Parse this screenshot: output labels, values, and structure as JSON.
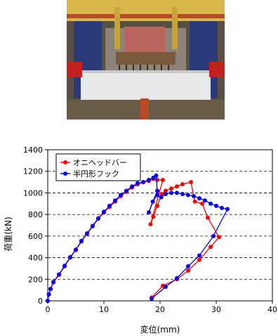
{
  "photo": {
    "icon": "loading-frame-test-photo"
  },
  "chart_data": {
    "type": "line",
    "xlabel": "変位(mm)",
    "ylabel": "荷重(kN)",
    "xlim": [
      0,
      40
    ],
    "ylim": [
      0,
      1400
    ],
    "x_ticks": [
      "0",
      "10",
      "20",
      "30",
      "40"
    ],
    "y_ticks": [
      "0",
      "200",
      "400",
      "600",
      "800",
      "1000",
      "1200",
      "1400"
    ],
    "grid": "horizontal-dashed",
    "legend_position": "top-left",
    "series": [
      {
        "name": "オニヘッドバー",
        "color": "#ff0000",
        "points": [
          [
            0,
            0
          ],
          [
            0.2,
            60
          ],
          [
            0.5,
            110
          ],
          [
            1,
            170
          ],
          [
            2,
            240
          ],
          [
            3,
            320
          ],
          [
            4,
            400
          ],
          [
            5,
            470
          ],
          [
            6,
            550
          ],
          [
            7,
            620
          ],
          [
            8,
            690
          ],
          [
            9,
            760
          ],
          [
            10,
            820
          ],
          [
            11,
            870
          ],
          [
            12,
            920
          ],
          [
            13,
            970
          ],
          [
            14,
            1010
          ],
          [
            15,
            1050
          ],
          [
            16,
            1080
          ],
          [
            17,
            1100
          ],
          [
            18,
            1110
          ],
          [
            18.8,
            1130
          ],
          [
            19.5,
            1120
          ],
          [
            20.5,
            1120
          ],
          [
            18.3,
            710
          ],
          [
            18.8,
            780
          ],
          [
            19.5,
            880
          ],
          [
            20.3,
            990
          ],
          [
            21,
            1020
          ],
          [
            22,
            1040
          ],
          [
            23,
            1060
          ],
          [
            24,
            1080
          ],
          [
            25.5,
            1100
          ],
          [
            26.2,
            920
          ],
          [
            27.5,
            900
          ],
          [
            28.5,
            770
          ],
          [
            30.5,
            590
          ],
          [
            29,
            500
          ],
          [
            27,
            380
          ],
          [
            25,
            280
          ],
          [
            23,
            200
          ],
          [
            20.5,
            140
          ],
          [
            18.5,
            30
          ]
        ]
      },
      {
        "name": "半円形フック",
        "color": "#0000ff",
        "points": [
          [
            0,
            0
          ],
          [
            0.2,
            60
          ],
          [
            0.5,
            110
          ],
          [
            1,
            175
          ],
          [
            2,
            245
          ],
          [
            3,
            325
          ],
          [
            4,
            405
          ],
          [
            5,
            475
          ],
          [
            6,
            555
          ],
          [
            7,
            625
          ],
          [
            8,
            695
          ],
          [
            9,
            765
          ],
          [
            10,
            825
          ],
          [
            11,
            880
          ],
          [
            12,
            930
          ],
          [
            13,
            980
          ],
          [
            14,
            1020
          ],
          [
            15,
            1060
          ],
          [
            16,
            1090
          ],
          [
            17,
            1100
          ],
          [
            18,
            1120
          ],
          [
            18.8,
            1140
          ],
          [
            19.3,
            1160
          ],
          [
            19.5,
            1020
          ],
          [
            18,
            820
          ],
          [
            18.7,
            920
          ],
          [
            19.5,
            980
          ],
          [
            20.2,
            960
          ],
          [
            21,
            990
          ],
          [
            22,
            1000
          ],
          [
            23,
            1000
          ],
          [
            24,
            990
          ],
          [
            25,
            980
          ],
          [
            26,
            970
          ],
          [
            27,
            950
          ],
          [
            28,
            930
          ],
          [
            29,
            900
          ],
          [
            30,
            880
          ],
          [
            31,
            860
          ],
          [
            32,
            850
          ],
          [
            29.5,
            600
          ],
          [
            27,
            420
          ],
          [
            25,
            320
          ],
          [
            23,
            210
          ],
          [
            21,
            130
          ],
          [
            18.5,
            20
          ]
        ]
      }
    ]
  }
}
